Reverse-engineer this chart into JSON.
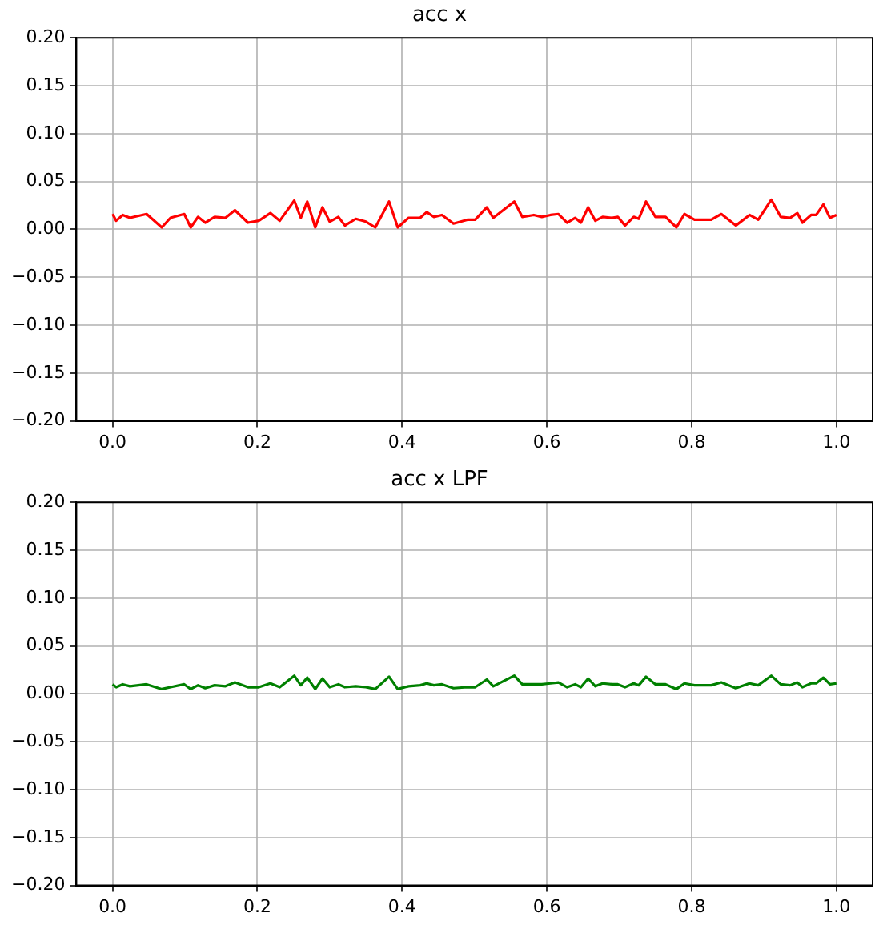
{
  "chart_data": [
    {
      "type": "line",
      "title": "acc x",
      "x": [
        0,
        0.005,
        0.014,
        0.024,
        0.047,
        0.068,
        0.08,
        0.099,
        0.108,
        0.118,
        0.128,
        0.141,
        0.156,
        0.169,
        0.187,
        0.202,
        0.218,
        0.231,
        0.251,
        0.26,
        0.269,
        0.28,
        0.29,
        0.3,
        0.312,
        0.321,
        0.336,
        0.35,
        0.363,
        0.382,
        0.394,
        0.409,
        0.425,
        0.434,
        0.444,
        0.455,
        0.471,
        0.49,
        0.501,
        0.517,
        0.526,
        0.555,
        0.566,
        0.582,
        0.593,
        0.605,
        0.616,
        0.628,
        0.639,
        0.647,
        0.657,
        0.667,
        0.677,
        0.69,
        0.698,
        0.708,
        0.72,
        0.727,
        0.737,
        0.75,
        0.764,
        0.779,
        0.79,
        0.804,
        0.827,
        0.841,
        0.861,
        0.88,
        0.892,
        0.91,
        0.923,
        0.936,
        0.946,
        0.953,
        0.965,
        0.972,
        0.982,
        0.991,
        1.0
      ],
      "series": [
        {
          "color": "#ff0000",
          "values": [
            0.016,
            0.009,
            0.015,
            0.012,
            0.016,
            0.002,
            0.012,
            0.016,
            0.002,
            0.013,
            0.007,
            0.013,
            0.012,
            0.02,
            0.007,
            0.009,
            0.017,
            0.009,
            0.03,
            0.012,
            0.029,
            0.002,
            0.023,
            0.008,
            0.013,
            0.004,
            0.011,
            0.008,
            0.002,
            0.029,
            0.002,
            0.012,
            0.012,
            0.018,
            0.013,
            0.015,
            0.006,
            0.01,
            0.01,
            0.023,
            0.012,
            0.029,
            0.013,
            0.015,
            0.013,
            0.015,
            0.016,
            0.007,
            0.012,
            0.007,
            0.023,
            0.009,
            0.013,
            0.012,
            0.013,
            0.004,
            0.013,
            0.011,
            0.029,
            0.013,
            0.013,
            0.002,
            0.016,
            0.01,
            0.01,
            0.016,
            0.004,
            0.015,
            0.01,
            0.031,
            0.013,
            0.012,
            0.017,
            0.007,
            0.015,
            0.015,
            0.026,
            0.012,
            0.015
          ]
        }
      ],
      "xlim": [
        -0.05,
        1.05
      ],
      "xticks": [
        {
          "value": 0,
          "label": "0.0"
        },
        {
          "value": 0.2,
          "label": "0.2"
        },
        {
          "value": 0.4,
          "label": "0.4"
        },
        {
          "value": 0.6,
          "label": "0.6"
        },
        {
          "value": 0.8,
          "label": "0.8"
        },
        {
          "value": 1,
          "label": "1.0"
        }
      ],
      "ylim": [
        -0.2,
        0.2
      ],
      "yticks": [
        {
          "value": -0.2,
          "label": "−0.20"
        },
        {
          "value": -0.15,
          "label": "−0.15"
        },
        {
          "value": -0.1,
          "label": "−0.10"
        },
        {
          "value": -0.05,
          "label": "−0.05"
        },
        {
          "value": 0,
          "label": "0.00"
        },
        {
          "value": 0.05,
          "label": "0.05"
        },
        {
          "value": 0.1,
          "label": "0.10"
        },
        {
          "value": 0.15,
          "label": "0.15"
        },
        {
          "value": 0.2,
          "label": "0.20"
        }
      ],
      "grid": true
    },
    {
      "type": "line",
      "title": "acc x LPF",
      "x": [
        0,
        0.005,
        0.014,
        0.024,
        0.047,
        0.068,
        0.08,
        0.099,
        0.108,
        0.118,
        0.128,
        0.141,
        0.156,
        0.169,
        0.187,
        0.202,
        0.218,
        0.231,
        0.251,
        0.26,
        0.269,
        0.28,
        0.29,
        0.3,
        0.312,
        0.321,
        0.336,
        0.35,
        0.363,
        0.382,
        0.394,
        0.409,
        0.425,
        0.434,
        0.444,
        0.455,
        0.471,
        0.49,
        0.501,
        0.517,
        0.526,
        0.555,
        0.566,
        0.582,
        0.593,
        0.605,
        0.616,
        0.628,
        0.639,
        0.647,
        0.657,
        0.667,
        0.677,
        0.69,
        0.698,
        0.708,
        0.72,
        0.727,
        0.737,
        0.75,
        0.764,
        0.779,
        0.79,
        0.804,
        0.827,
        0.841,
        0.861,
        0.88,
        0.892,
        0.91,
        0.923,
        0.936,
        0.946,
        0.953,
        0.965,
        0.972,
        0.982,
        0.991,
        1.0
      ],
      "series": [
        {
          "color": "#008000",
          "values": [
            0.01,
            0.007,
            0.01,
            0.008,
            0.01,
            0.005,
            0.007,
            0.01,
            0.005,
            0.009,
            0.006,
            0.009,
            0.008,
            0.012,
            0.007,
            0.007,
            0.011,
            0.007,
            0.019,
            0.009,
            0.017,
            0.005,
            0.016,
            0.007,
            0.01,
            0.007,
            0.008,
            0.007,
            0.005,
            0.018,
            0.005,
            0.008,
            0.009,
            0.011,
            0.009,
            0.01,
            0.006,
            0.007,
            0.007,
            0.015,
            0.008,
            0.019,
            0.01,
            0.01,
            0.01,
            0.011,
            0.012,
            0.007,
            0.01,
            0.007,
            0.016,
            0.008,
            0.011,
            0.01,
            0.01,
            0.007,
            0.011,
            0.009,
            0.018,
            0.01,
            0.01,
            0.005,
            0.011,
            0.009,
            0.009,
            0.012,
            0.006,
            0.011,
            0.009,
            0.019,
            0.01,
            0.009,
            0.012,
            0.007,
            0.011,
            0.011,
            0.017,
            0.01,
            0.011
          ]
        }
      ],
      "xlim": [
        -0.05,
        1.05
      ],
      "xticks": [
        {
          "value": 0,
          "label": "0.0"
        },
        {
          "value": 0.2,
          "label": "0.2"
        },
        {
          "value": 0.4,
          "label": "0.4"
        },
        {
          "value": 0.6,
          "label": "0.6"
        },
        {
          "value": 0.8,
          "label": "0.8"
        },
        {
          "value": 1,
          "label": "1.0"
        }
      ],
      "ylim": [
        -0.2,
        0.2
      ],
      "yticks": [
        {
          "value": -0.2,
          "label": "−0.20"
        },
        {
          "value": -0.15,
          "label": "−0.15"
        },
        {
          "value": -0.1,
          "label": "−0.10"
        },
        {
          "value": -0.05,
          "label": "−0.05"
        },
        {
          "value": 0,
          "label": "0.00"
        },
        {
          "value": 0.05,
          "label": "0.05"
        },
        {
          "value": 0.1,
          "label": "0.10"
        },
        {
          "value": 0.15,
          "label": "0.15"
        },
        {
          "value": 0.2,
          "label": "0.20"
        }
      ],
      "grid": true
    }
  ]
}
